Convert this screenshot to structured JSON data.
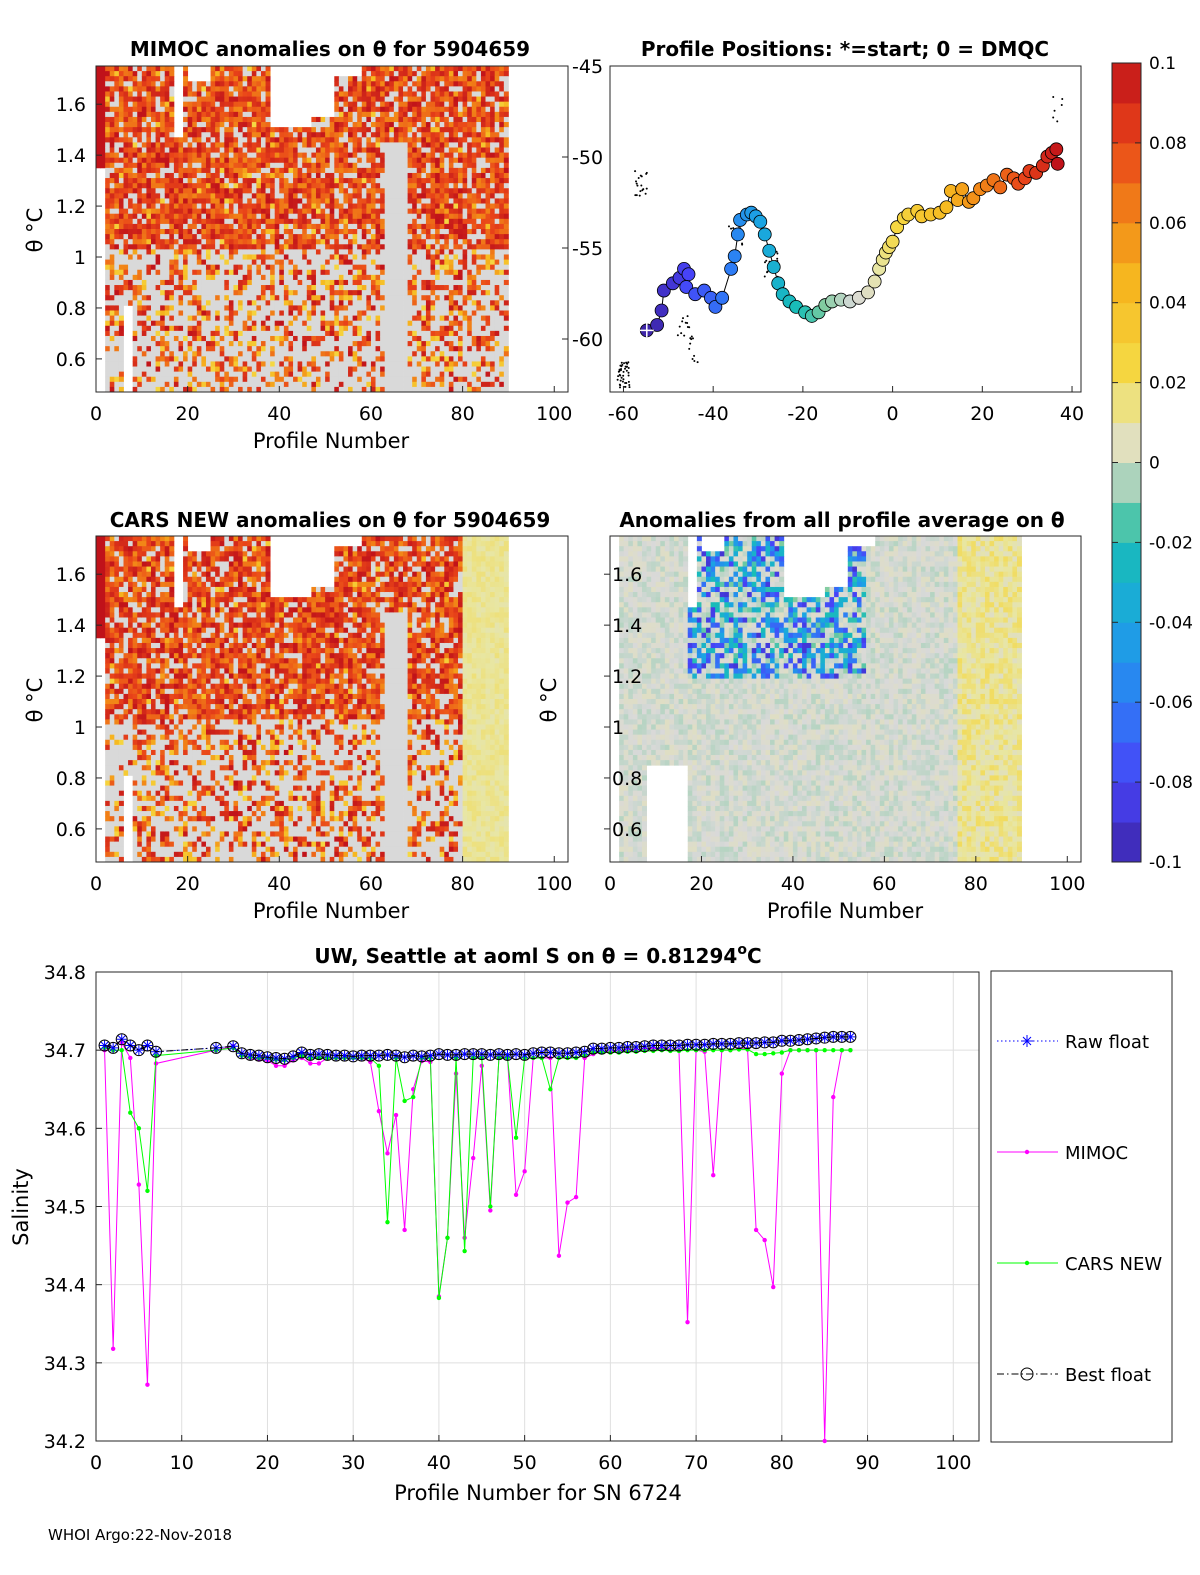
{
  "footer": "WHOI Argo:22-Nov-2018",
  "colors": {
    "mimoc": "#ff00ff",
    "cars": "#00ff00",
    "raw": "#0000ff",
    "best": "#000000",
    "axis": "#262626",
    "grid": "#dfdfdf"
  },
  "colorbar": {
    "ticks": [
      "0.1",
      "0.08",
      "0.06",
      "0.04",
      "0.02",
      "0",
      "-0.02",
      "-0.04",
      "-0.06",
      "-0.08",
      "-0.1"
    ],
    "range": [
      -0.1,
      0.1
    ]
  },
  "panels": {
    "mimoc": {
      "title": "MIMOC anomalies on θ  for 5904659",
      "xlabel": "Profile Number",
      "ylabel": "θ °C"
    },
    "positions": {
      "title": "Profile Positions: *=start; 0 = DMQC"
    },
    "cars": {
      "title": "CARS NEW anomalies on θ for 5904659",
      "xlabel": "Profile Number",
      "ylabel": "θ °C"
    },
    "allavg": {
      "title": "Anomalies from all profile average on θ",
      "xlabel": "Profile Number",
      "ylabel": "θ °C"
    },
    "salinity": {
      "title_main": "UW, Seattle at aoml S on θ = 0.81294",
      "title_sup": "o",
      "title_end": "C",
      "xlabel": "Profile Number for SN 6724",
      "ylabel": "Salinity"
    }
  },
  "legend": [
    "Raw float",
    "MIMOC",
    "CARS NEW",
    "Best float"
  ],
  "chart_data": [
    {
      "type": "heatmap",
      "title": "MIMOC anomalies on θ  for 5904659",
      "xlabel": "Profile Number",
      "ylabel": "θ °C",
      "xlim": [
        0,
        103
      ],
      "ylim": [
        0.47,
        1.75
      ],
      "xticks": [
        "0",
        "20",
        "40",
        "60",
        "80",
        "100"
      ],
      "yticks": [
        "0.6",
        "0.8",
        "1",
        "1.2",
        "1.4",
        "1.6"
      ],
      "right_ticks": [
        "-45",
        "-50",
        "-55",
        "-60"
      ]
    },
    {
      "type": "scatter",
      "title": "Profile Positions: *=start; 0 = DMQC",
      "xlim": [
        -63,
        42
      ],
      "ylim": [
        -63,
        -45
      ],
      "xticks": [
        "-60",
        "-40",
        "-20",
        "0",
        "20",
        "40"
      ],
      "track": [
        [
          -54.8,
          -59.6
        ],
        [
          -52.5,
          -59.3
        ],
        [
          -51.5,
          -58.5
        ],
        [
          -51,
          -57.4
        ],
        [
          -49,
          -57
        ],
        [
          -47.5,
          -56.7
        ],
        [
          -46.5,
          -56.2
        ],
        [
          -45.5,
          -56.5
        ],
        [
          -46,
          -57.2
        ],
        [
          -44,
          -57.6
        ],
        [
          -42,
          -57.4
        ],
        [
          -40.5,
          -57.8
        ],
        [
          -39.5,
          -58.3
        ],
        [
          -38,
          -57.8
        ],
        [
          -36,
          -56.2
        ],
        [
          -35.2,
          -55.5
        ],
        [
          -34.5,
          -54.3
        ],
        [
          -34,
          -53.5
        ],
        [
          -32.5,
          -53.2
        ],
        [
          -31.5,
          -53.1
        ],
        [
          -30.5,
          -53.3
        ],
        [
          -29.5,
          -53.6
        ],
        [
          -28.5,
          -54.3
        ],
        [
          -27.5,
          -55.2
        ],
        [
          -26.5,
          -56.1
        ],
        [
          -25.5,
          -57
        ],
        [
          -24.5,
          -57.6
        ],
        [
          -23,
          -58
        ],
        [
          -21.5,
          -58.3
        ],
        [
          -19.5,
          -58.6
        ],
        [
          -18,
          -58.8
        ],
        [
          -16.5,
          -58.6
        ],
        [
          -15,
          -58.2
        ],
        [
          -13.5,
          -58
        ],
        [
          -11.5,
          -57.9
        ],
        [
          -9.5,
          -58
        ],
        [
          -7.5,
          -57.8
        ],
        [
          -5.5,
          -57.5
        ],
        [
          -4,
          -56.9
        ],
        [
          -3,
          -56.2
        ],
        [
          -2.2,
          -55.7
        ],
        [
          -1.5,
          -55.3
        ],
        [
          -0.8,
          -55
        ],
        [
          0,
          -54.7
        ],
        [
          1,
          -53.9
        ],
        [
          2.5,
          -53.4
        ],
        [
          3.5,
          -53.2
        ],
        [
          5.5,
          -53
        ],
        [
          6.5,
          -53.3
        ],
        [
          8.5,
          -53.2
        ],
        [
          10.5,
          -53.1
        ],
        [
          12,
          -52.8
        ],
        [
          13,
          -51.9
        ],
        [
          14.5,
          -52.4
        ],
        [
          15.5,
          -51.8
        ],
        [
          17,
          -52.5
        ],
        [
          18,
          -52.3
        ],
        [
          19.5,
          -51.8
        ],
        [
          21,
          -51.6
        ],
        [
          22.5,
          -51.3
        ],
        [
          24,
          -51.7
        ],
        [
          25.5,
          -51
        ],
        [
          27,
          -51.2
        ],
        [
          28,
          -51.5
        ],
        [
          29.5,
          -51.2
        ],
        [
          30.5,
          -50.8
        ],
        [
          32,
          -50.9
        ],
        [
          33.5,
          -50.5
        ],
        [
          34.5,
          -50
        ],
        [
          35.5,
          -49.8
        ],
        [
          36.5,
          -49.6
        ],
        [
          36.8,
          -50.4
        ]
      ]
    },
    {
      "type": "heatmap",
      "title": "CARS NEW anomalies on θ for 5904659",
      "xlabel": "Profile Number",
      "ylabel": "θ °C",
      "xlim": [
        0,
        103
      ],
      "ylim": [
        0.47,
        1.75
      ],
      "xticks": [
        "0",
        "20",
        "40",
        "60",
        "80",
        "100"
      ],
      "yticks": [
        "0.6",
        "0.8",
        "1",
        "1.2",
        "1.4",
        "1.6"
      ]
    },
    {
      "type": "heatmap",
      "title": "Anomalies from all profile average on θ",
      "xlabel": "Profile Number",
      "ylabel": "θ °C",
      "xlim": [
        0,
        103
      ],
      "ylim": [
        0.47,
        1.75
      ],
      "xticks": [
        "0",
        "20",
        "40",
        "60",
        "80",
        "100"
      ],
      "yticks": [
        "0.6",
        "0.8",
        "1",
        "1.2",
        "1.4",
        "1.6"
      ]
    },
    {
      "type": "line",
      "title": "UW, Seattle at aoml S on θ = 0.81294°C",
      "xlabel": "Profile Number for SN 6724",
      "ylabel": "Salinity",
      "xlim": [
        0,
        103
      ],
      "ylim": [
        34.2,
        34.8
      ],
      "xticks": [
        "0",
        "10",
        "20",
        "30",
        "40",
        "50",
        "60",
        "70",
        "80",
        "90",
        "100"
      ],
      "yticks": [
        "34.2",
        "34.3",
        "34.4",
        "34.5",
        "34.6",
        "34.7",
        "34.8"
      ],
      "series": [
        {
          "name": "Raw float",
          "marker": "star",
          "style": "dotted",
          "x": [
            1,
            2,
            3,
            4,
            5,
            6,
            7,
            14,
            16,
            17,
            18,
            19,
            20,
            21,
            22,
            23,
            24,
            25,
            26,
            27,
            28,
            29,
            30,
            31,
            32,
            33,
            34,
            35,
            36,
            37,
            38,
            39,
            40,
            41,
            42,
            43,
            44,
            45,
            46,
            47,
            48,
            49,
            50,
            51,
            52,
            53,
            54,
            55,
            56,
            57,
            58,
            59,
            60,
            61,
            62,
            63,
            64,
            65,
            66,
            67,
            68,
            69,
            70,
            71,
            72,
            73,
            74,
            75,
            76,
            77,
            78,
            79,
            80,
            81,
            82,
            83,
            84,
            85,
            86,
            87,
            88
          ],
          "y": [
            34.706,
            34.703,
            34.714,
            34.706,
            34.7,
            34.706,
            34.698,
            34.703,
            34.705,
            34.696,
            34.694,
            34.693,
            34.691,
            34.69,
            34.689,
            34.692,
            34.697,
            34.694,
            34.695,
            34.694,
            34.693,
            34.693,
            34.692,
            34.693,
            34.693,
            34.693,
            34.694,
            34.693,
            34.691,
            34.693,
            34.692,
            34.693,
            34.695,
            34.694,
            34.694,
            34.695,
            34.695,
            34.695,
            34.694,
            34.695,
            34.694,
            34.695,
            34.694,
            34.696,
            34.697,
            34.697,
            34.696,
            34.696,
            34.697,
            34.698,
            34.702,
            34.702,
            34.703,
            34.703,
            34.704,
            34.704,
            34.705,
            34.706,
            34.706,
            34.706,
            34.706,
            34.707,
            34.707,
            34.707,
            34.708,
            34.708,
            34.708,
            34.709,
            34.709,
            34.709,
            34.71,
            34.71,
            34.712,
            34.712,
            34.713,
            34.714,
            34.715,
            34.716,
            34.717,
            34.717,
            34.717
          ]
        },
        {
          "name": "MIMOC",
          "marker": "dot",
          "style": "solid",
          "x": [
            1,
            2,
            3,
            4,
            5,
            6,
            7,
            14,
            16,
            17,
            18,
            19,
            20,
            21,
            22,
            23,
            24,
            25,
            26,
            27,
            28,
            29,
            30,
            31,
            32,
            33,
            34,
            35,
            36,
            37,
            38,
            39,
            40,
            41,
            42,
            43,
            44,
            45,
            46,
            47,
            48,
            49,
            50,
            51,
            52,
            53,
            54,
            55,
            56,
            57,
            58,
            59,
            60,
            61,
            62,
            63,
            64,
            65,
            66,
            67,
            68,
            69,
            70,
            71,
            72,
            73,
            74,
            75,
            76,
            77,
            78,
            79,
            80,
            81,
            82,
            83,
            84,
            85,
            86,
            87,
            88
          ],
          "y": [
            34.7,
            34.318,
            34.71,
            34.69,
            34.528,
            34.272,
            34.683,
            34.7,
            34.705,
            34.693,
            34.69,
            34.688,
            34.687,
            34.68,
            34.68,
            34.687,
            34.69,
            34.683,
            34.683,
            34.69,
            34.69,
            34.69,
            34.69,
            34.69,
            34.685,
            34.622,
            34.568,
            34.617,
            34.47,
            34.65,
            34.686,
            34.685,
            34.385,
            34.46,
            34.67,
            34.46,
            34.562,
            34.68,
            34.495,
            34.69,
            34.69,
            34.515,
            34.545,
            34.69,
            34.69,
            34.69,
            34.437,
            34.505,
            34.512,
            34.69,
            34.695,
            34.698,
            34.698,
            34.698,
            34.7,
            34.7,
            34.702,
            34.702,
            34.702,
            34.7,
            34.7,
            34.352,
            34.7,
            34.698,
            34.54,
            34.7,
            34.7,
            34.702,
            34.702,
            34.47,
            34.457,
            34.397,
            34.67,
            34.7,
            34.7,
            34.7,
            34.7,
            34.2,
            34.64,
            34.7,
            34.7
          ]
        },
        {
          "name": "CARS NEW",
          "marker": "dot",
          "style": "solid",
          "x": [
            1,
            2,
            3,
            4,
            5,
            6,
            7,
            14,
            16,
            17,
            18,
            19,
            20,
            21,
            22,
            23,
            24,
            25,
            26,
            27,
            28,
            29,
            30,
            31,
            32,
            33,
            34,
            35,
            36,
            37,
            38,
            39,
            40,
            41,
            42,
            43,
            44,
            45,
            46,
            47,
            48,
            49,
            50,
            51,
            52,
            53,
            54,
            55,
            56,
            57,
            58,
            59,
            60,
            61,
            62,
            63,
            64,
            65,
            66,
            67,
            68,
            69,
            70,
            71,
            72,
            73,
            74,
            75,
            76,
            77,
            78,
            79,
            80,
            81,
            82,
            83,
            84,
            85,
            86,
            87,
            88
          ],
          "y": [
            34.703,
            34.7,
            34.7,
            34.62,
            34.6,
            34.52,
            34.693,
            34.7,
            34.703,
            34.693,
            34.691,
            34.69,
            34.69,
            34.688,
            34.687,
            34.69,
            34.693,
            34.69,
            34.69,
            34.69,
            34.69,
            34.69,
            34.69,
            34.69,
            34.69,
            34.68,
            34.48,
            34.69,
            34.635,
            34.64,
            34.69,
            34.69,
            34.383,
            34.46,
            34.69,
            34.443,
            34.69,
            34.69,
            34.5,
            34.69,
            34.69,
            34.588,
            34.69,
            34.69,
            34.69,
            34.65,
            34.69,
            34.69,
            34.69,
            34.693,
            34.697,
            34.697,
            34.697,
            34.697,
            34.698,
            34.698,
            34.699,
            34.699,
            34.7,
            34.699,
            34.699,
            34.7,
            34.7,
            34.7,
            34.7,
            34.7,
            34.7,
            34.701,
            34.701,
            34.695,
            34.695,
            34.696,
            34.697,
            34.7,
            34.7,
            34.7,
            34.7,
            34.7,
            34.7,
            34.7,
            34.7
          ]
        },
        {
          "name": "Best float",
          "marker": "circle",
          "style": "dashdot",
          "x": [
            1,
            2,
            3,
            4,
            5,
            6,
            7,
            14,
            16,
            17,
            18,
            19,
            20,
            21,
            22,
            23,
            24,
            25,
            26,
            27,
            28,
            29,
            30,
            31,
            32,
            33,
            34,
            35,
            36,
            37,
            38,
            39,
            40,
            41,
            42,
            43,
            44,
            45,
            46,
            47,
            48,
            49,
            50,
            51,
            52,
            53,
            54,
            55,
            56,
            57,
            58,
            59,
            60,
            61,
            62,
            63,
            64,
            65,
            66,
            67,
            68,
            69,
            70,
            71,
            72,
            73,
            74,
            75,
            76,
            77,
            78,
            79,
            80,
            81,
            82,
            83,
            84,
            85,
            86,
            87,
            88
          ],
          "y": [
            34.706,
            34.703,
            34.714,
            34.706,
            34.7,
            34.706,
            34.698,
            34.703,
            34.705,
            34.696,
            34.694,
            34.693,
            34.691,
            34.69,
            34.689,
            34.692,
            34.697,
            34.694,
            34.695,
            34.694,
            34.693,
            34.693,
            34.692,
            34.693,
            34.693,
            34.693,
            34.694,
            34.693,
            34.691,
            34.693,
            34.692,
            34.693,
            34.695,
            34.694,
            34.694,
            34.695,
            34.695,
            34.695,
            34.694,
            34.695,
            34.694,
            34.695,
            34.694,
            34.696,
            34.697,
            34.697,
            34.696,
            34.696,
            34.697,
            34.698,
            34.702,
            34.702,
            34.703,
            34.703,
            34.704,
            34.704,
            34.705,
            34.706,
            34.706,
            34.706,
            34.706,
            34.707,
            34.707,
            34.707,
            34.708,
            34.708,
            34.708,
            34.709,
            34.709,
            34.709,
            34.71,
            34.71,
            34.712,
            34.712,
            34.713,
            34.714,
            34.715,
            34.716,
            34.717,
            34.717,
            34.717
          ]
        }
      ]
    }
  ]
}
